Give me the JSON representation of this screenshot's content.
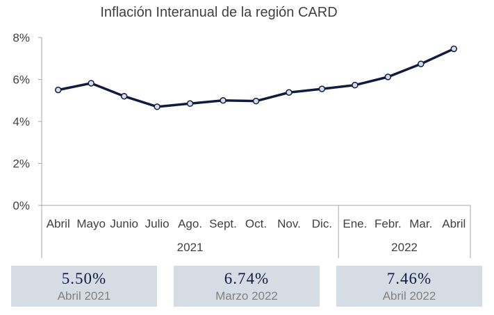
{
  "chart_data": {
    "type": "line",
    "title": "Inflación Interanual de la región CARD",
    "categories": [
      "Abril",
      "Mayo",
      "Junio",
      "Julio",
      "Ago.",
      "Sept.",
      "Oct.",
      "Nov.",
      "Dic.",
      "Ene.",
      "Febr.",
      "Mar.",
      "Abril"
    ],
    "groups": [
      {
        "label": "2021",
        "count": 9
      },
      {
        "label": "2022",
        "count": 4
      }
    ],
    "series": [
      {
        "values": [
          5.5,
          5.82,
          5.2,
          4.7,
          4.85,
          5.0,
          4.97,
          5.38,
          5.55,
          5.73,
          6.12,
          6.74,
          7.46
        ]
      }
    ],
    "yticks": [
      "0%",
      "2%",
      "4%",
      "6%",
      "8%"
    ],
    "ylim": [
      0,
      8
    ],
    "grid": false,
    "line_color": "#0f1c3f",
    "marker_fill": "#d6dce4"
  },
  "cards": [
    {
      "value": "5.50%",
      "label": "Abril 2021"
    },
    {
      "value": "6.74%",
      "label": "Marzo 2022"
    },
    {
      "value": "7.46%",
      "label": "Abril 2022"
    }
  ]
}
